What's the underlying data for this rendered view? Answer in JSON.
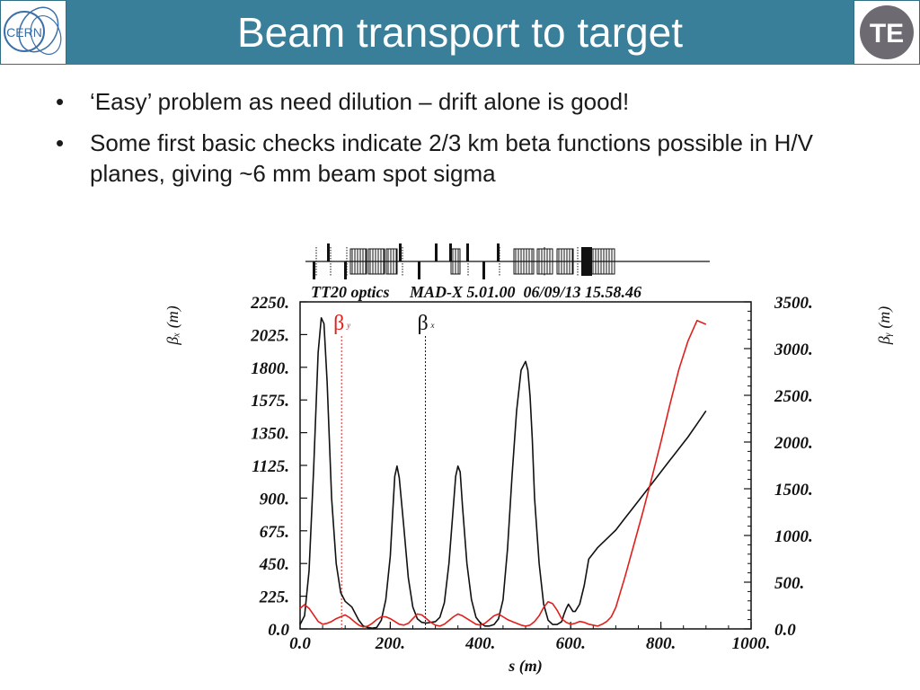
{
  "slide": {
    "title": "Beam transport to target",
    "logo_left_text": "CERN",
    "logo_right_text": "TE",
    "bullets": [
      "‘Easy’ problem as need dilution – drift alone is good!",
      "Some first basic checks indicate 2/3 km beta functions possible in H/V planes, giving ~6 mm beam spot sigma"
    ]
  },
  "colors": {
    "header": "#3a7f99",
    "beta_x": "#111111",
    "beta_y": "#e0201c"
  },
  "chart_data": {
    "type": "line",
    "title": "TT20 optics     MAD-X 5.01.00  06/09/13 15.58.46",
    "xlabel": "s (m)",
    "ylabel_left": "βₓ (m)",
    "ylabel_right": "βᵧ (m)",
    "xlim": [
      0,
      1000
    ],
    "ylim_left": [
      0,
      2250
    ],
    "ylim_right": [
      0,
      3500
    ],
    "x_ticks": [
      "0.0",
      "200.",
      "400.",
      "600.",
      "800.",
      "1000."
    ],
    "y_ticks_left": [
      "0.0",
      "225.",
      "450.",
      "675.",
      "900.",
      "1125.",
      "1350.",
      "1575.",
      "1800.",
      "2025.",
      "2250."
    ],
    "y_ticks_right": [
      "0.0",
      "500.",
      "1000.",
      "1500.",
      "2000.",
      "2500.",
      "3000.",
      "3500."
    ],
    "annotations": [
      {
        "label": "β",
        "sub": "y",
        "x": 92,
        "color": "#e0201c"
      },
      {
        "label": "β",
        "sub": "x",
        "x": 278,
        "color": "#111111"
      }
    ],
    "series": [
      {
        "name": "βx",
        "axis": "left",
        "color": "#111111",
        "x": [
          0,
          10,
          20,
          30,
          40,
          47,
          53,
          60,
          70,
          80,
          90,
          100,
          115,
          130,
          140,
          150,
          160,
          170,
          180,
          190,
          200,
          205,
          210,
          215,
          220,
          230,
          240,
          250,
          260,
          270,
          280,
          290,
          300,
          310,
          320,
          330,
          340,
          345,
          350,
          355,
          360,
          370,
          380,
          390,
          400,
          410,
          420,
          430,
          440,
          450,
          460,
          470,
          480,
          490,
          500,
          505,
          510,
          515,
          520,
          530,
          540,
          550,
          560,
          570,
          580,
          585,
          590,
          595,
          600,
          605,
          610,
          620,
          630,
          640,
          650,
          660,
          670,
          680,
          690,
          700,
          720,
          740,
          760,
          780,
          800,
          820,
          840,
          860,
          880,
          900
        ],
        "y": [
          30,
          90,
          400,
          1100,
          1900,
          2140,
          2100,
          1700,
          900,
          450,
          250,
          190,
          150,
          60,
          20,
          10,
          5,
          10,
          60,
          200,
          500,
          780,
          1050,
          1120,
          1040,
          700,
          350,
          150,
          70,
          45,
          40,
          45,
          50,
          80,
          180,
          450,
          850,
          1050,
          1120,
          1080,
          850,
          450,
          200,
          80,
          40,
          20,
          20,
          30,
          70,
          200,
          550,
          1050,
          1500,
          1780,
          1840,
          1780,
          1600,
          1300,
          900,
          450,
          170,
          60,
          30,
          30,
          50,
          100,
          140,
          170,
          145,
          120,
          120,
          170,
          300,
          480,
          520,
          560,
          590,
          620,
          650,
          680,
          760,
          840,
          920,
          1000,
          1080,
          1160,
          1240,
          1320,
          1410,
          1500
        ]
      },
      {
        "name": "βy",
        "axis": "right",
        "color": "#e0201c",
        "x": [
          0,
          10,
          20,
          30,
          40,
          50,
          60,
          70,
          80,
          90,
          100,
          110,
          120,
          130,
          140,
          150,
          160,
          170,
          180,
          190,
          200,
          210,
          220,
          230,
          240,
          250,
          260,
          270,
          280,
          290,
          300,
          310,
          320,
          330,
          340,
          350,
          360,
          370,
          380,
          390,
          400,
          410,
          420,
          430,
          440,
          450,
          460,
          470,
          480,
          490,
          500,
          510,
          520,
          530,
          540,
          550,
          560,
          570,
          580,
          590,
          600,
          610,
          620,
          630,
          640,
          650,
          660,
          670,
          680,
          690,
          700,
          720,
          740,
          760,
          780,
          800,
          820,
          840,
          860,
          880,
          900
        ],
        "y": [
          220,
          260,
          220,
          150,
          80,
          50,
          60,
          80,
          110,
          130,
          150,
          120,
          80,
          40,
          20,
          30,
          60,
          100,
          130,
          130,
          110,
          80,
          50,
          40,
          60,
          110,
          160,
          150,
          110,
          70,
          40,
          30,
          50,
          90,
          130,
          160,
          140,
          110,
          80,
          50,
          40,
          60,
          100,
          140,
          160,
          130,
          100,
          80,
          60,
          40,
          30,
          40,
          80,
          140,
          230,
          290,
          270,
          200,
          110,
          70,
          50,
          60,
          80,
          70,
          50,
          40,
          30,
          50,
          80,
          130,
          230,
          550,
          900,
          1250,
          1620,
          2000,
          2400,
          2780,
          3080,
          3300,
          3260
        ]
      }
    ],
    "grid": false,
    "legend": "none"
  }
}
